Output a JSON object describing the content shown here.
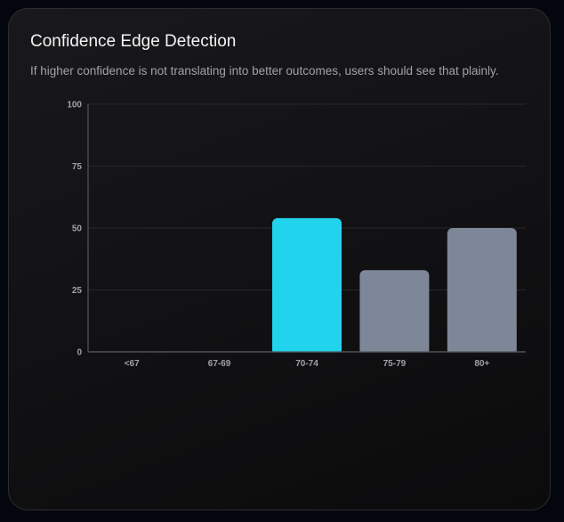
{
  "header": {
    "title": "Confidence Edge Detection",
    "subtitle": "If higher confidence is not translating into better outcomes, users should see that plainly."
  },
  "chart_data": {
    "type": "bar",
    "title": "Confidence Edge Detection",
    "subtitle": "If higher confidence is not translating into better outcomes, users should see that plainly.",
    "categories": [
      "<67",
      "67-69",
      "70-74",
      "75-79",
      "80+"
    ],
    "values": [
      0,
      0,
      54,
      33,
      50
    ],
    "xlabel": "",
    "ylabel": "",
    "ylim": [
      0,
      100
    ],
    "yticks": [
      0,
      25,
      50,
      75,
      100
    ],
    "grid": true,
    "legend": "none",
    "colors": {
      "highlight": "#22d3ee",
      "default": "#7d8798",
      "grid": "#242428",
      "axis": "#55575c"
    },
    "highlight_category": "70-74"
  }
}
